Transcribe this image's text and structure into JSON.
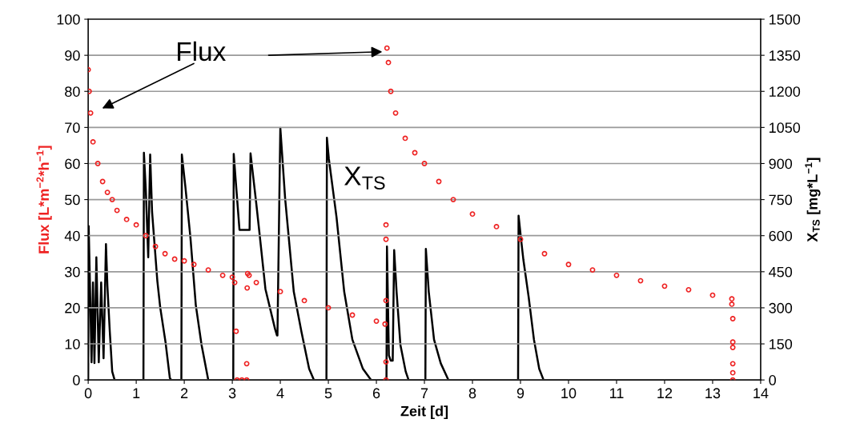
{
  "chart_data": {
    "type": "line",
    "xlabel": "Zeit [d]",
    "ylabel": "Flux [L*m$^{−2}$*h$^{−1}$]",
    "y2label": "X$_{TS}$ [mg*L$^{−1}$]",
    "xlim": [
      0,
      14
    ],
    "xticks": [
      0,
      1,
      2,
      3,
      4,
      5,
      6,
      7,
      8,
      9,
      10,
      11,
      12,
      13,
      14
    ],
    "ylim": [
      0,
      100
    ],
    "yticks": [
      0,
      10,
      20,
      30,
      40,
      50,
      60,
      70,
      80,
      90,
      100
    ],
    "y2lim": [
      0,
      1500
    ],
    "y2ticks": [
      0,
      150,
      300,
      450,
      600,
      750,
      900,
      1050,
      1200,
      1350,
      1500
    ],
    "grid": "y",
    "legend": false,
    "annotations": [
      "Flux"
    ],
    "series": [
      {
        "type": "scatter",
        "marker": "circle",
        "color": "#ee2222",
        "x": [
          0,
          0.02,
          0.05,
          0.1,
          0.2,
          0.3,
          0.4,
          0.5,
          0.6,
          0.8,
          1.0,
          1.2,
          1.4,
          1.6,
          1.8,
          2.0,
          2.2,
          2.5,
          2.8,
          3.0,
          3.05,
          3.08,
          3.1,
          3.2,
          3.3,
          3.3,
          3.31,
          3.32,
          3.35,
          3.5,
          4.0,
          4.5,
          5.0,
          5.5,
          6.0,
          6.18,
          6.2,
          6.2,
          6.2,
          6.2,
          6.2,
          6.22,
          6.25,
          6.3,
          6.4,
          6.6,
          6.8,
          7.0,
          7.3,
          7.6,
          8.0,
          8.5,
          9.0,
          9.5,
          10.0,
          10.5,
          11.0,
          11.5,
          12.0,
          12.5,
          13.0,
          13.4,
          13.4,
          13.42,
          13.42,
          13.42,
          13.42,
          13.42,
          13.42
        ],
        "values": [
          86,
          80,
          74,
          66,
          60,
          55,
          52,
          50,
          47,
          44.5,
          43,
          40,
          37,
          35,
          33.5,
          33,
          32,
          30.5,
          29,
          28.5,
          27,
          13.5,
          0,
          0,
          0,
          4.5,
          25.5,
          29.5,
          29,
          27,
          24.5,
          22,
          20,
          18,
          16.3,
          15.5,
          43,
          39,
          22,
          5,
          0,
          92,
          88,
          80,
          74,
          67,
          63,
          60,
          55,
          50,
          46,
          42.5,
          39,
          35,
          32,
          30.5,
          29,
          27.5,
          26,
          25,
          23.5,
          22.5,
          21,
          17,
          10.5,
          9,
          4.5,
          2,
          0
        ]
      },
      {
        "name": "X$_{TS}$",
        "axis": "y2",
        "color": "#000000",
        "x": [
          0,
          0.01,
          0.04,
          0.07,
          0.1,
          0.13,
          0.17,
          0.22,
          0.27,
          0.32,
          0.37,
          0.4,
          0.45,
          0.5,
          0.55,
          0.63,
          0.72,
          0.77,
          1.15,
          1.16,
          1.2,
          1.25,
          1.29,
          1.33,
          1.44,
          1.5,
          1.61,
          1.7,
          1.73,
          1.94,
          1.95,
          2.02,
          2.13,
          2.24,
          2.36,
          2.5,
          3.02,
          3.03,
          3.07,
          3.15,
          3.36,
          3.38,
          3.45,
          3.5,
          3.56,
          3.69,
          3.89,
          3.93,
          3.94,
          4.0,
          4.1,
          4.28,
          4.44,
          4.6,
          4.7,
          4.96,
          4.97,
          5.01,
          5.17,
          5.33,
          5.5,
          5.72,
          5.89,
          6.21,
          6.22,
          6.26,
          6.3,
          6.34,
          6.37,
          6.42,
          6.5,
          6.61,
          6.67,
          7.02,
          7.03,
          7.09,
          7.2,
          7.34,
          7.5,
          8.95,
          8.96,
          9.01,
          9.06,
          9.17,
          9.28,
          9.39,
          9.48,
          13.4
        ],
        "values": [
          0,
          640,
          367,
          74,
          405,
          70,
          510,
          74,
          405,
          90,
          565,
          390,
          200,
          35,
          0,
          0,
          0,
          0,
          0,
          945,
          788,
          510,
          937,
          699,
          411,
          301,
          157,
          8,
          0,
          0,
          937,
          810,
          589,
          312,
          146,
          0,
          0,
          940,
          832,
          624,
          624,
          942,
          820,
          732,
          622,
          378,
          212,
          185,
          185,
          1048,
          755,
          367,
          200,
          46,
          0,
          0,
          1007,
          920,
          677,
          367,
          168,
          46,
          0,
          0,
          555,
          102,
          80,
          80,
          540,
          367,
          146,
          35,
          0,
          0,
          545,
          367,
          168,
          69,
          0,
          0,
          683,
          589,
          500,
          345,
          168,
          46,
          0,
          0
        ]
      }
    ]
  }
}
